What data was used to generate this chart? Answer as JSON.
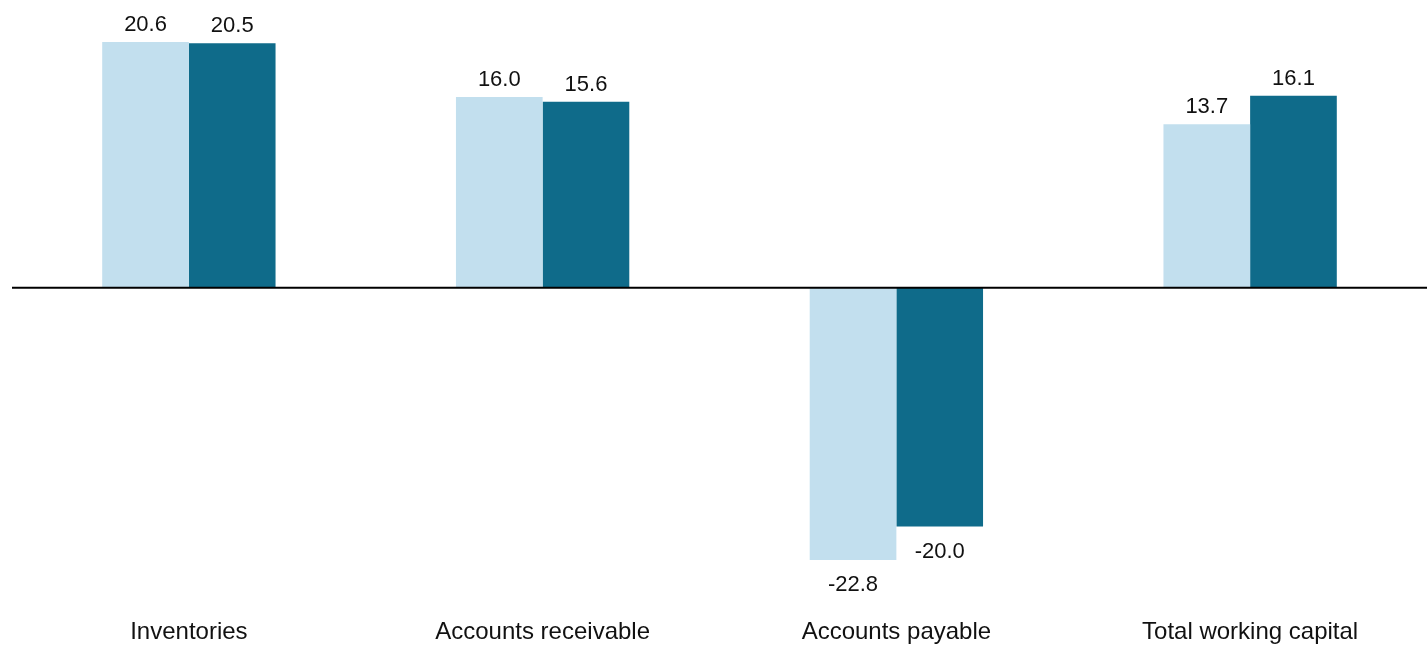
{
  "chart_data": {
    "type": "bar",
    "categories": [
      "Inventories",
      "Accounts receivable",
      "Accounts payable",
      "Total working capital"
    ],
    "series": [
      {
        "color": "#c2dfee",
        "values": [
          20.6,
          16.0,
          -22.8,
          13.7
        ],
        "value_labels": [
          "20.6",
          "16.0",
          "-22.8",
          "13.7"
        ]
      },
      {
        "color": "#0f6b8a",
        "values": [
          20.5,
          15.6,
          -20.0,
          16.1
        ],
        "value_labels": [
          "20.5",
          "15.6",
          "-20.0",
          "16.1"
        ]
      }
    ],
    "grid": false,
    "legend": false,
    "tick_labels": "x"
  }
}
